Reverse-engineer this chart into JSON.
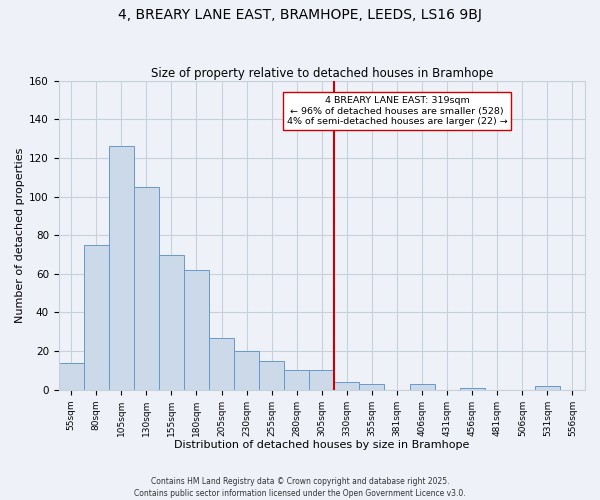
{
  "title": "4, BREARY LANE EAST, BRAMHOPE, LEEDS, LS16 9BJ",
  "subtitle": "Size of property relative to detached houses in Bramhope",
  "xlabel": "Distribution of detached houses by size in Bramhope",
  "ylabel": "Number of detached properties",
  "bar_labels": [
    "55sqm",
    "80sqm",
    "105sqm",
    "130sqm",
    "155sqm",
    "180sqm",
    "205sqm",
    "230sqm",
    "255sqm",
    "280sqm",
    "305sqm",
    "330sqm",
    "355sqm",
    "381sqm",
    "406sqm",
    "431sqm",
    "456sqm",
    "481sqm",
    "506sqm",
    "531sqm",
    "556sqm"
  ],
  "bar_values": [
    14,
    75,
    126,
    105,
    70,
    62,
    27,
    20,
    15,
    10,
    10,
    4,
    3,
    0,
    3,
    0,
    1,
    0,
    0,
    2,
    0
  ],
  "bar_color": "#ccd9e8",
  "bar_edge_color": "#6699cc",
  "vline_x": 10.5,
  "vline_color": "#cc0000",
  "ylim": [
    0,
    160
  ],
  "yticks": [
    0,
    20,
    40,
    60,
    80,
    100,
    120,
    140,
    160
  ],
  "annotation_title": "4 BREARY LANE EAST: 319sqm",
  "annotation_line1": "← 96% of detached houses are smaller (528)",
  "annotation_line2": "4% of semi-detached houses are larger (22) →",
  "annotation_box_color": "#ffffff",
  "annotation_border_color": "#cc0000",
  "grid_color": "#c8d0dc",
  "background_color": "#eef2f8",
  "footer_line1": "Contains HM Land Registry data © Crown copyright and database right 2025.",
  "footer_line2": "Contains public sector information licensed under the Open Government Licence v3.0."
}
